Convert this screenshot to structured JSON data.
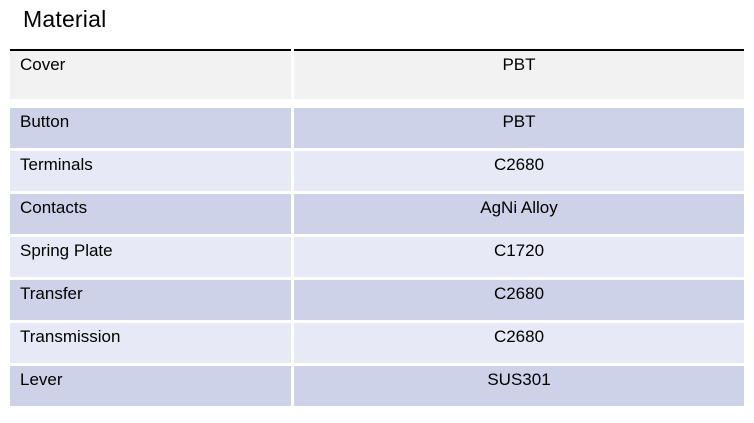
{
  "title": "Material",
  "table": {
    "rows": [
      {
        "label": "Cover",
        "value": "PBT"
      },
      {
        "label": "Button",
        "value": "PBT"
      },
      {
        "label": "Terminals",
        "value": "C2680"
      },
      {
        "label": "Contacts",
        "value": "AgNi Alloy"
      },
      {
        "label": "Spring Plate",
        "value": "C1720"
      },
      {
        "label": "Transfer",
        "value": "C2680"
      },
      {
        "label": "Transmission",
        "value": "C2680"
      },
      {
        "label": "Lever",
        "value": "SUS301"
      }
    ]
  },
  "colors": {
    "page_bg": "#ffffff",
    "header_row_bg": "#f2f2f2",
    "dark_row_bg": "#cdd2e8",
    "light_row_bg": "#e7eaf6",
    "top_border": "#000000",
    "text": "#000000"
  }
}
